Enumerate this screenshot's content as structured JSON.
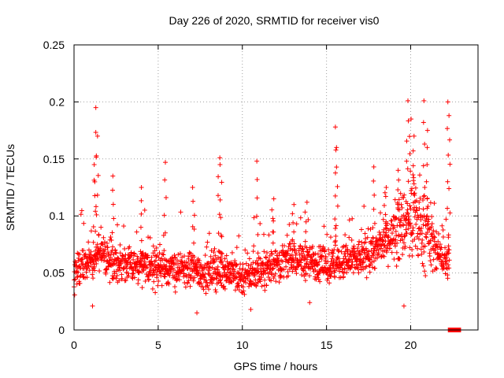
{
  "chart_data": {
    "type": "scatter",
    "title": "Day 226 of 2020, SRMTID for receiver vis0",
    "xlabel": "GPS time / hours",
    "ylabel": "SRMTID / TECUs",
    "xlim": [
      0,
      24
    ],
    "ylim": [
      0,
      0.25
    ],
    "xticks": [
      0,
      5,
      10,
      15,
      20
    ],
    "yticks": [
      0,
      0.05,
      0.1,
      0.15,
      0.2,
      0.25
    ],
    "xtick_labels": [
      "0",
      "5",
      "10",
      "15",
      "20"
    ],
    "ytick_labels": [
      "0",
      "0.05",
      "0.1",
      "0.15",
      "0.2",
      "0.25"
    ],
    "grid": true,
    "series": [
      {
        "name": "SRMTID",
        "marker": "plus",
        "color": "#ff0000",
        "baseline": [
          [
            0.0,
            0.052
          ],
          [
            1.0,
            0.06
          ],
          [
            1.5,
            0.068
          ],
          [
            2.0,
            0.062
          ],
          [
            3.0,
            0.057
          ],
          [
            4.0,
            0.055
          ],
          [
            5.0,
            0.055
          ],
          [
            6.0,
            0.053
          ],
          [
            7.0,
            0.052
          ],
          [
            8.0,
            0.05
          ],
          [
            9.0,
            0.053
          ],
          [
            10.0,
            0.046
          ],
          [
            11.0,
            0.052
          ],
          [
            12.0,
            0.058
          ],
          [
            13.0,
            0.062
          ],
          [
            14.0,
            0.06
          ],
          [
            15.0,
            0.056
          ],
          [
            16.0,
            0.058
          ],
          [
            17.0,
            0.063
          ],
          [
            18.0,
            0.07
          ],
          [
            19.0,
            0.085
          ],
          [
            19.8,
            0.095
          ],
          [
            20.5,
            0.09
          ],
          [
            21.0,
            0.085
          ],
          [
            21.5,
            0.07
          ],
          [
            22.0,
            0.06
          ],
          [
            22.3,
            0.06
          ]
        ],
        "peaks": [
          [
            1.3,
            0.195
          ],
          [
            1.4,
            0.17
          ],
          [
            1.2,
            0.145
          ],
          [
            2.3,
            0.135
          ],
          [
            4.0,
            0.125
          ],
          [
            5.4,
            0.147
          ],
          [
            7.1,
            0.125
          ],
          [
            8.6,
            0.151
          ],
          [
            8.7,
            0.145
          ],
          [
            10.9,
            0.148
          ],
          [
            11.8,
            0.115
          ],
          [
            13.0,
            0.11
          ],
          [
            13.8,
            0.112
          ],
          [
            15.5,
            0.178
          ],
          [
            15.6,
            0.16
          ],
          [
            17.8,
            0.143
          ],
          [
            18.5,
            0.125
          ],
          [
            19.3,
            0.14
          ],
          [
            19.8,
            0.201
          ],
          [
            20.0,
            0.185
          ],
          [
            20.2,
            0.17
          ],
          [
            20.8,
            0.201
          ],
          [
            21.0,
            0.175
          ],
          [
            22.2,
            0.2
          ],
          [
            22.3,
            0.188
          ]
        ],
        "lows": [
          [
            1.1,
            0.021
          ],
          [
            7.3,
            0.015
          ],
          [
            10.5,
            0.018
          ],
          [
            14.0,
            0.024
          ],
          [
            19.6,
            0.021
          ]
        ],
        "zero_points": [
          [
            22.35,
            0.0
          ],
          [
            22.5,
            0.0
          ],
          [
            22.65,
            0.0
          ],
          [
            22.85,
            0.0
          ]
        ]
      }
    ]
  }
}
